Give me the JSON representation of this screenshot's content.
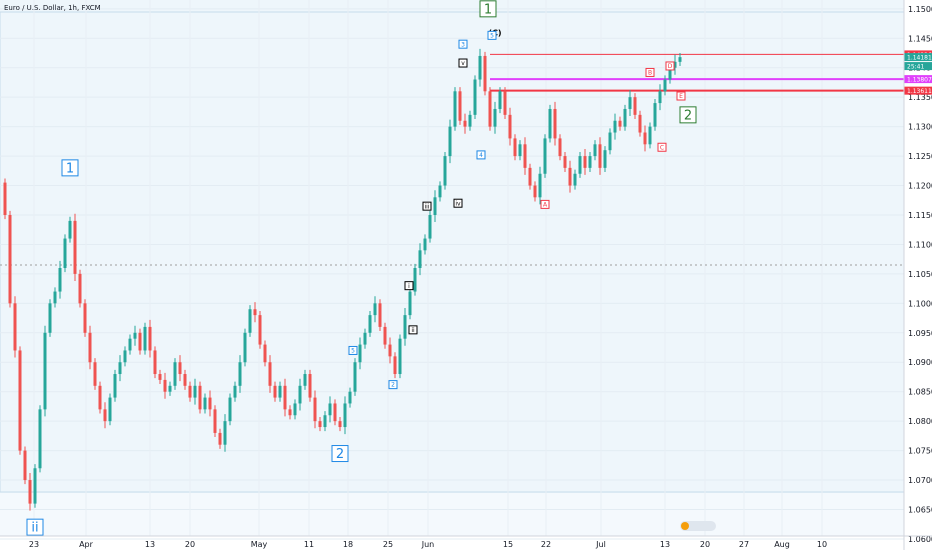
{
  "header": {
    "symbol_title": "Euro / U.S. Dollar, 1h, FXCM"
  },
  "chart_data": {
    "type": "line",
    "title": "Euro / U.S. Dollar, 1h, FXCM",
    "xlabel": "",
    "ylabel": "",
    "ylim": [
      1.0605,
      1.1515
    ],
    "x_ticks": [
      "23",
      "Apr",
      "13",
      "20",
      "May",
      "11",
      "18",
      "25",
      "Jun",
      "15",
      "22",
      "Jul",
      "13",
      "20",
      "27",
      "Aug",
      "10"
    ],
    "y_ticks": [
      "1.15000",
      "1.14500",
      "1.14000",
      "1.13500",
      "1.13000",
      "1.12500",
      "1.12000",
      "1.11500",
      "1.11000",
      "1.10500",
      "1.10000",
      "1.09500",
      "1.09000",
      "1.08500",
      "1.08000",
      "1.07500",
      "1.07000",
      "1.06500",
      "1.06000"
    ],
    "series": [
      {
        "x": [
          0,
          5,
          10,
          15,
          20,
          25,
          30,
          35,
          40,
          45,
          50,
          55,
          60,
          65,
          70,
          75,
          80,
          85,
          90,
          95,
          100,
          105,
          110,
          115,
          120,
          125,
          130,
          135,
          140,
          145,
          150,
          155,
          160,
          165,
          170,
          175,
          180,
          185,
          190,
          195,
          200,
          205,
          210,
          215,
          220,
          225,
          230,
          235,
          240,
          245,
          250,
          255,
          260,
          265,
          270,
          275,
          280,
          285,
          290,
          295,
          300,
          305,
          310,
          315,
          320,
          325,
          330,
          335,
          340,
          345,
          350,
          355,
          360,
          365,
          370,
          375,
          380,
          385,
          390,
          395,
          400,
          405,
          410,
          415,
          420,
          425,
          430,
          435,
          440,
          445,
          450,
          455,
          460,
          465,
          470,
          475,
          480,
          485,
          490,
          495,
          500,
          505,
          510,
          515,
          520,
          525,
          530,
          535,
          540,
          545,
          550,
          555,
          560,
          565,
          570,
          575,
          580,
          585,
          590,
          595,
          600,
          605,
          610,
          615,
          620,
          625,
          630,
          635,
          640,
          645,
          650,
          655,
          660,
          665,
          670,
          675,
          680
        ],
        "values": [
          1.1205,
          1.115,
          1.1,
          1.092,
          1.075,
          1.07,
          1.066,
          1.072,
          1.082,
          1.095,
          1.1,
          1.102,
          1.106,
          1.111,
          1.114,
          1.105,
          1.1,
          1.095,
          1.09,
          1.086,
          1.082,
          1.08,
          1.084,
          1.088,
          1.09,
          1.092,
          1.094,
          1.095,
          1.092,
          1.096,
          1.092,
          1.088,
          1.087,
          1.085,
          1.086,
          1.09,
          1.088,
          1.086,
          1.084,
          1.086,
          1.082,
          1.084,
          1.082,
          1.078,
          1.076,
          1.08,
          1.084,
          1.086,
          1.09,
          1.095,
          1.099,
          1.098,
          1.093,
          1.09,
          1.086,
          1.084,
          1.086,
          1.082,
          1.081,
          1.083,
          1.086,
          1.088,
          1.084,
          1.08,
          1.079,
          1.081,
          1.083,
          1.08,
          1.079,
          1.083,
          1.085,
          1.09,
          1.093,
          1.095,
          1.098,
          1.1,
          1.096,
          1.093,
          1.091,
          1.088,
          1.094,
          1.098,
          1.102,
          1.106,
          1.109,
          1.111,
          1.115,
          1.118,
          1.12,
          1.125,
          1.13,
          1.136,
          1.131,
          1.13,
          1.132,
          1.138,
          1.142,
          1.136,
          1.13,
          1.133,
          1.136,
          1.132,
          1.128,
          1.125,
          1.127,
          1.123,
          1.12,
          1.118,
          1.122,
          1.128,
          1.133,
          1.128,
          1.125,
          1.123,
          1.12,
          1.122,
          1.125,
          1.123,
          1.125,
          1.127,
          1.123,
          1.126,
          1.129,
          1.131,
          1.13,
          1.133,
          1.135,
          1.132,
          1.129,
          1.127,
          1.13,
          1.134,
          1.136,
          1.138,
          1.14,
          1.141,
          1.1418
        ],
        "name": ""
      }
    ],
    "price_labels": [
      {
        "text": "1.14226",
        "value": 1.14226,
        "color": "#f23645"
      },
      {
        "text": "1.14181",
        "value": 1.14181,
        "color": "#26a69a"
      },
      {
        "text": "25:41",
        "value": 1.1411,
        "color": "#26a69a"
      },
      {
        "text": "1.13807",
        "value": 1.13807,
        "color": "#e040fb"
      },
      {
        "text": "1.13611",
        "value": 1.13611,
        "color": "#f23645"
      }
    ],
    "wave_labels": [
      {
        "text": "1",
        "x": 488,
        "y": 1.15,
        "color": "#2e7d32"
      },
      {
        "text": "(C)",
        "x": 495,
        "y": 1.1455,
        "color": "#000000"
      },
      {
        "text": "2",
        "x": 688,
        "y": 1.132,
        "color": "#2e7d32"
      },
      {
        "text": "1",
        "x": 70,
        "y": 1.123,
        "color": "#1e88e5"
      },
      {
        "text": "2",
        "x": 340,
        "y": 1.0745,
        "color": "#1e88e5"
      },
      {
        "text": "ii",
        "x": 35,
        "y": 1.062,
        "color": "#1e88e5"
      },
      {
        "text": "A",
        "x": 545,
        "y": 1.1168,
        "color": "#f23645"
      },
      {
        "text": "B",
        "x": 650,
        "y": 1.1392,
        "color": "#f23645"
      },
      {
        "text": "C",
        "x": 662,
        "y": 1.1265,
        "color": "#f23645"
      },
      {
        "text": "D",
        "x": 670,
        "y": 1.1403,
        "color": "#f23645"
      },
      {
        "text": "E",
        "x": 681,
        "y": 1.1352,
        "color": "#f23645"
      },
      {
        "text": "3",
        "x": 463,
        "y": 1.144,
        "color": "#1e88e5"
      },
      {
        "text": "5",
        "x": 492,
        "y": 1.1455,
        "color": "#1e88e5"
      },
      {
        "text": "4",
        "x": 481,
        "y": 1.1252,
        "color": "#1e88e5"
      },
      {
        "text": "iii",
        "x": 427,
        "y": 1.1165,
        "color": "#000000"
      },
      {
        "text": "iv",
        "x": 458,
        "y": 1.117,
        "color": "#000000"
      },
      {
        "text": "v",
        "x": 463,
        "y": 1.1408,
        "color": "#000000"
      },
      {
        "text": "i",
        "x": 409,
        "y": 1.103,
        "color": "#000000"
      },
      {
        "text": "ii",
        "x": 413,
        "y": 1.0955,
        "color": "#000000"
      },
      {
        "text": "5",
        "x": 353,
        "y": 1.092,
        "color": "#1e88e5"
      },
      {
        "text": "2",
        "x": 393,
        "y": 1.0862,
        "color": "#1e88e5"
      }
    ],
    "hlines": [
      {
        "value": 1.14226,
        "color": "#f23645"
      },
      {
        "value": 1.13807,
        "color": "#e040fb"
      },
      {
        "value": 1.13611,
        "color": "#f23645"
      },
      {
        "value": 1.1065,
        "color": "#9e9e9e"
      }
    ]
  }
}
